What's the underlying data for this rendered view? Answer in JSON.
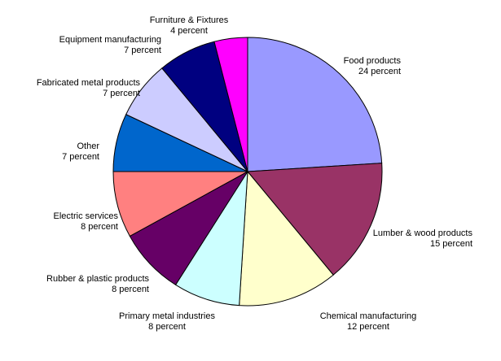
{
  "chart_data": {
    "type": "pie",
    "title": "",
    "start_angle_deg": 0,
    "direction": "clockwise",
    "slices": [
      {
        "label": "Food products",
        "value": 24,
        "value_label": "24 percent",
        "color": "#9999ff"
      },
      {
        "label": "Lumber & wood products",
        "value": 15,
        "value_label": "15 percent",
        "color": "#993366"
      },
      {
        "label": "Chemical manufacturing",
        "value": 12,
        "value_label": "12 percent",
        "color": "#ffffcc"
      },
      {
        "label": "Primary metal industries",
        "value": 8,
        "value_label": "8 percent",
        "color": "#ccffff"
      },
      {
        "label": "Rubber & plastic products",
        "value": 8,
        "value_label": "8 percent",
        "color": "#660066"
      },
      {
        "label": "Electric services",
        "value": 8,
        "value_label": "8 percent",
        "color": "#ff8080"
      },
      {
        "label": "Other",
        "value": 7,
        "value_label": "7 percent",
        "color": "#0066cc"
      },
      {
        "label": "Fabricated metal products",
        "value": 7,
        "value_label": "7 percent",
        "color": "#ccccff"
      },
      {
        "label": "Equipment manufacturing",
        "value": 7,
        "value_label": "7 percent",
        "color": "#000080"
      },
      {
        "label": "Furniture & Fixtures",
        "value": 4,
        "value_label": "4 percent",
        "color": "#ff00ff"
      }
    ]
  }
}
